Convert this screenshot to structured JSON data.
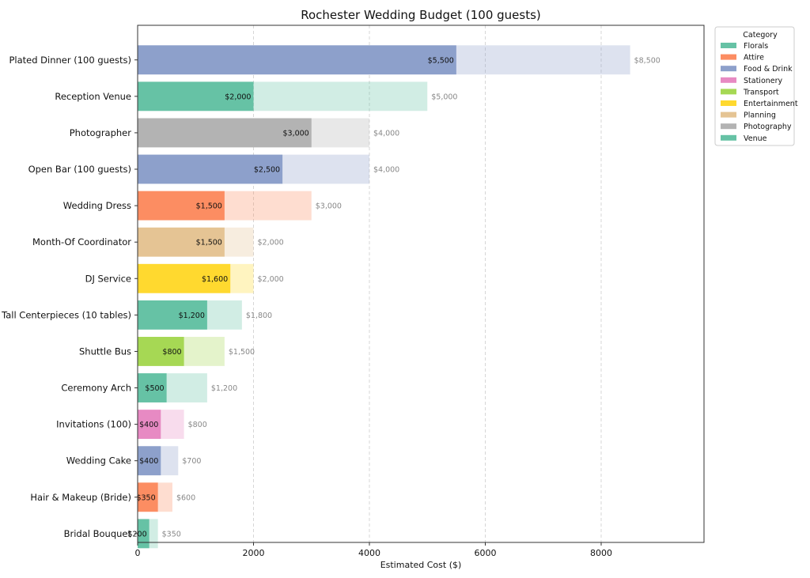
{
  "chart_data": {
    "type": "bar",
    "orientation": "horizontal",
    "title": "Rochester Wedding Budget (100 guests)",
    "xlabel": "Estimated Cost ($)",
    "ylabel": "",
    "xlim": [
      0,
      9775
    ],
    "xticks": [
      0,
      2000,
      4000,
      6000,
      8000
    ],
    "grid": "x, dashed",
    "legend": {
      "title": "Category",
      "placement": "outside top-right",
      "entries": [
        {
          "name": "Florals",
          "color": "#66c2a5"
        },
        {
          "name": "Attire",
          "color": "#fc8d62"
        },
        {
          "name": "Food & Drink",
          "color": "#8da0cb"
        },
        {
          "name": "Stationery",
          "color": "#e78ac3"
        },
        {
          "name": "Transport",
          "color": "#a6d854"
        },
        {
          "name": "Entertainment",
          "color": "#ffd92f"
        },
        {
          "name": "Planning",
          "color": "#e5c494"
        },
        {
          "name": "Photography",
          "color": "#b3b3b3"
        },
        {
          "name": "Venue",
          "color": "#66c2a5"
        }
      ]
    },
    "items": [
      {
        "name": "Plated Dinner (100 guests)",
        "category": "Food & Drink",
        "low": 5500,
        "high": 8500,
        "low_label": "$5,500",
        "high_label": "$8,500"
      },
      {
        "name": "Reception Venue",
        "category": "Venue",
        "low": 2000,
        "high": 5000,
        "low_label": "$2,000",
        "high_label": "$5,000"
      },
      {
        "name": "Photographer",
        "category": "Photography",
        "low": 3000,
        "high": 4000,
        "low_label": "$3,000",
        "high_label": "$4,000"
      },
      {
        "name": "Open Bar (100 guests)",
        "category": "Food & Drink",
        "low": 2500,
        "high": 4000,
        "low_label": "$2,500",
        "high_label": "$4,000"
      },
      {
        "name": "Wedding Dress",
        "category": "Attire",
        "low": 1500,
        "high": 3000,
        "low_label": "$1,500",
        "high_label": "$3,000"
      },
      {
        "name": "Month-Of Coordinator",
        "category": "Planning",
        "low": 1500,
        "high": 2000,
        "low_label": "$1,500",
        "high_label": "$2,000"
      },
      {
        "name": "DJ Service",
        "category": "Entertainment",
        "low": 1600,
        "high": 2000,
        "low_label": "$1,600",
        "high_label": "$2,000"
      },
      {
        "name": "Tall Centerpieces (10 tables)",
        "category": "Florals",
        "low": 1200,
        "high": 1800,
        "low_label": "$1,200",
        "high_label": "$1,800"
      },
      {
        "name": "Shuttle Bus",
        "category": "Transport",
        "low": 800,
        "high": 1500,
        "low_label": "$800",
        "high_label": "$1,500"
      },
      {
        "name": "Ceremony Arch",
        "category": "Florals",
        "low": 500,
        "high": 1200,
        "low_label": "$500",
        "high_label": "$1,200"
      },
      {
        "name": "Invitations (100)",
        "category": "Stationery",
        "low": 400,
        "high": 800,
        "low_label": "$400",
        "high_label": "$800"
      },
      {
        "name": "Wedding Cake",
        "category": "Food & Drink",
        "low": 400,
        "high": 700,
        "low_label": "$400",
        "high_label": "$700"
      },
      {
        "name": "Hair & Makeup (Bride)",
        "category": "Attire",
        "low": 350,
        "high": 600,
        "low_label": "$350",
        "high_label": "$600"
      },
      {
        "name": "Bridal Bouquet",
        "category": "Florals",
        "low": 200,
        "high": 350,
        "low_label": "$200",
        "high_label": "$350"
      }
    ]
  }
}
